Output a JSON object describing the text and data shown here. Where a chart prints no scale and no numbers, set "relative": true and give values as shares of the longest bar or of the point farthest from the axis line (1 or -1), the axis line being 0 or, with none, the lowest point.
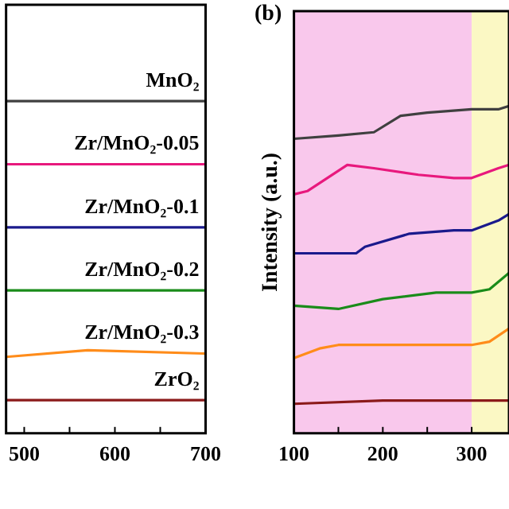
{
  "chart_data": [
    {
      "type": "line",
      "relative": true,
      "grid": false,
      "legend": false,
      "marker": "none",
      "line_style": "solid",
      "tick_labels": "x",
      "xlim": [
        480,
        700
      ],
      "xticks": [
        500,
        {
          "value": 550,
          "label": null
        },
        600,
        {
          "value": 650,
          "label": null
        },
        700
      ],
      "series": [
        {
          "name": "MnO₂",
          "color": "#404040",
          "x": [
            480,
            700
          ],
          "values": [
            1,
            1
          ]
        },
        {
          "name": "Zr/MnO₂-0.05",
          "color": "#e8197d",
          "x": [
            480,
            700
          ],
          "values": [
            0.81,
            0.81
          ]
        },
        {
          "name": "Zr/MnO₂-0.1",
          "color": "#1a1a8c",
          "x": [
            480,
            700
          ],
          "values": [
            0.62,
            0.62
          ]
        },
        {
          "name": "Zr/MnO₂-0.2",
          "color": "#1a8c1a",
          "x": [
            480,
            700
          ],
          "values": [
            0.43,
            0.43
          ]
        },
        {
          "name": "Zr/MnO₂-0.3",
          "color": "#ff8c1a",
          "x": [
            480,
            570,
            700
          ],
          "values": [
            0.23,
            0.25,
            0.24
          ]
        },
        {
          "name": "ZrO₂",
          "color": "#8b1a1a",
          "x": [
            480,
            700
          ],
          "values": [
            0.1,
            0.1
          ]
        }
      ]
    },
    {
      "type": "line",
      "relative": true,
      "grid": false,
      "legend": false,
      "marker": "none",
      "line_style": "solid",
      "tick_labels": "x",
      "title": "(b)",
      "ylabel": "Intensity (a.u.)",
      "xlim": [
        100,
        342
      ],
      "xticks": [
        100,
        {
          "value": 150,
          "label": null
        },
        200,
        {
          "value": 250,
          "label": null
        },
        300
      ],
      "bands": [
        {
          "axis": "x",
          "from": 100,
          "to": 300,
          "color": "#f9c8ec"
        },
        {
          "axis": "x",
          "from": 300,
          "to": 342,
          "color": "#fbf8c4"
        }
      ],
      "series": [
        {
          "color": "#404040",
          "x": [
            100,
            150,
            190,
            220,
            250,
            300,
            330,
            342
          ],
          "values": [
            0.9,
            0.91,
            0.92,
            0.97,
            0.98,
            0.99,
            0.99,
            1
          ]
        },
        {
          "color": "#e8197d",
          "x": [
            100,
            115,
            160,
            190,
            240,
            280,
            300,
            330,
            342
          ],
          "values": [
            0.73,
            0.74,
            0.82,
            0.81,
            0.79,
            0.78,
            0.78,
            0.81,
            0.82
          ]
        },
        {
          "color": "#1a1a8c",
          "x": [
            100,
            170,
            180,
            230,
            280,
            300,
            330,
            342
          ],
          "values": [
            0.55,
            0.55,
            0.57,
            0.61,
            0.62,
            0.62,
            0.65,
            0.67
          ]
        },
        {
          "color": "#1a8c1a",
          "x": [
            100,
            150,
            200,
            260,
            300,
            320,
            342
          ],
          "values": [
            0.39,
            0.38,
            0.41,
            0.43,
            0.43,
            0.44,
            0.49
          ]
        },
        {
          "color": "#ff8c1a",
          "x": [
            100,
            130,
            150,
            250,
            300,
            320,
            342
          ],
          "values": [
            0.23,
            0.26,
            0.27,
            0.27,
            0.27,
            0.28,
            0.32
          ]
        },
        {
          "color": "#8b1a1a",
          "x": [
            100,
            200,
            300,
            342
          ],
          "values": [
            0.09,
            0.1,
            0.1,
            0.1
          ]
        }
      ]
    }
  ]
}
